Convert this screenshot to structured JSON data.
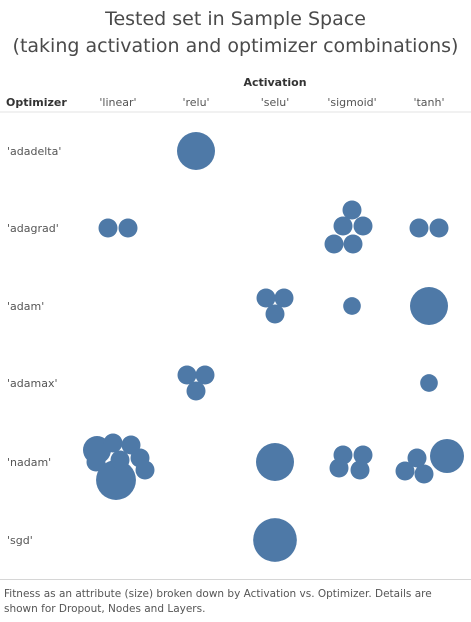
{
  "title": "Tested set  in Sample Space",
  "subtitle": "(taking activation and optimizer combinations)",
  "column_axis_title": "Activation",
  "row_axis_title": "Optimizer",
  "caption": "Fitness as an attribute (size) broken down by Activation vs. Optimizer.  Details are shown for Dropout, Nodes and Layers.",
  "chart_data": {
    "type": "packed-bubble-matrix",
    "title": "Tested set  in Sample Space",
    "subtitle": "(taking activation and optimizer combinations)",
    "xlabel": "Activation",
    "ylabel": "Optimizer",
    "columns": [
      "'linear'",
      "'relu'",
      "'selu'",
      "'sigmoid'",
      "'tanh'"
    ],
    "rows": [
      "'adadelta'",
      "'adagrad'",
      "'adam'",
      "'adamax'",
      "'nadam'",
      "'sgd'"
    ],
    "size_encoding": "Fitness",
    "color": "#4e79a7",
    "cells": [
      {
        "row": "'adadelta'",
        "col": "'relu'",
        "sizes": [
          1.0
        ]
      },
      {
        "row": "'adagrad'",
        "col": "'linear'",
        "sizes": [
          0.28,
          0.28
        ]
      },
      {
        "row": "'adagrad'",
        "col": "'sigmoid'",
        "sizes": [
          0.28,
          0.28,
          0.28,
          0.28,
          0.28
        ]
      },
      {
        "row": "'adagrad'",
        "col": "'tanh'",
        "sizes": [
          0.28,
          0.28
        ]
      },
      {
        "row": "'adam'",
        "col": "'selu'",
        "sizes": [
          0.28,
          0.28,
          0.28
        ]
      },
      {
        "row": "'adam'",
        "col": "'sigmoid'",
        "sizes": [
          0.26
        ]
      },
      {
        "row": "'adam'",
        "col": "'tanh'",
        "sizes": [
          1.0
        ]
      },
      {
        "row": "'adamax'",
        "col": "'relu'",
        "sizes": [
          0.28,
          0.28,
          0.28
        ]
      },
      {
        "row": "'adamax'",
        "col": "'tanh'",
        "sizes": [
          0.26
        ]
      },
      {
        "row": "'nadam'",
        "col": "'linear'",
        "sizes": [
          1.2,
          0.6,
          0.28,
          0.28,
          0.28,
          0.28,
          0.28,
          0.28
        ]
      },
      {
        "row": "'nadam'",
        "col": "'selu'",
        "sizes": [
          1.0
        ]
      },
      {
        "row": "'nadam'",
        "col": "'sigmoid'",
        "sizes": [
          0.28,
          0.28,
          0.28,
          0.28
        ]
      },
      {
        "row": "'nadam'",
        "col": "'tanh'",
        "sizes": [
          1.0,
          0.28,
          0.28,
          0.28
        ]
      },
      {
        "row": "'sgd'",
        "col": "'selu'",
        "sizes": [
          1.15
        ]
      }
    ]
  }
}
